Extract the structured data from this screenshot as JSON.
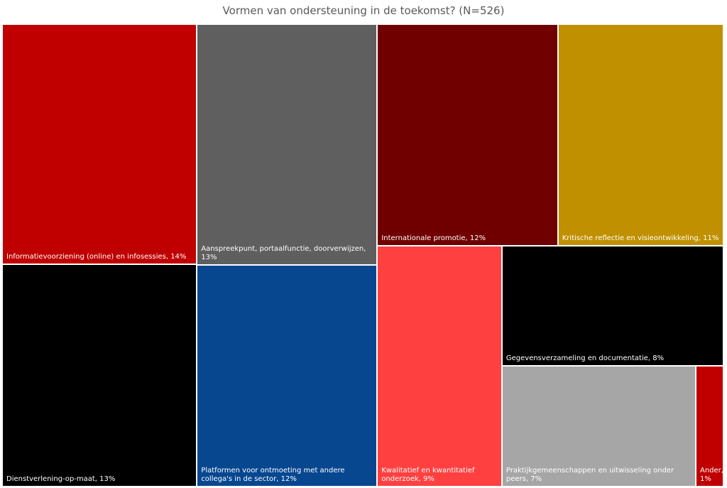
{
  "chart_data": {
    "type": "treemap",
    "title": "Vormen van ondersteuning in de toekomst? (N=526)",
    "values": [
      14,
      13,
      13,
      12,
      12,
      11,
      9,
      8,
      7,
      1
    ],
    "value_labels": [
      "Informatievoorziening (online) en infosessies, 14%",
      "Dienstverlening-op-maat, 13%",
      "Aanspreekpunt, portaalfunctie, doorverwijzen, 13%",
      "Platformen voor ontmoeting met andere collega's in de sector, 12%",
      "Internationale promotie, 12%",
      "Kritische reflectie en visieontwikkeling, 11%",
      "Kwalitatief en kwantitatief onderzoek, 9%",
      "Gegevensverzameling en documentatie, 8%",
      "Praktijkgemeenschappen en uitwisseling onder peers, 7%",
      "Ander, 1%"
    ],
    "colors": [
      "#c00000",
      "#000000",
      "#5f5f5f",
      "#074790",
      "#700000",
      "#c09000",
      "#ff4040",
      "#000000",
      "#a6a6a6",
      "#c00000"
    ]
  }
}
